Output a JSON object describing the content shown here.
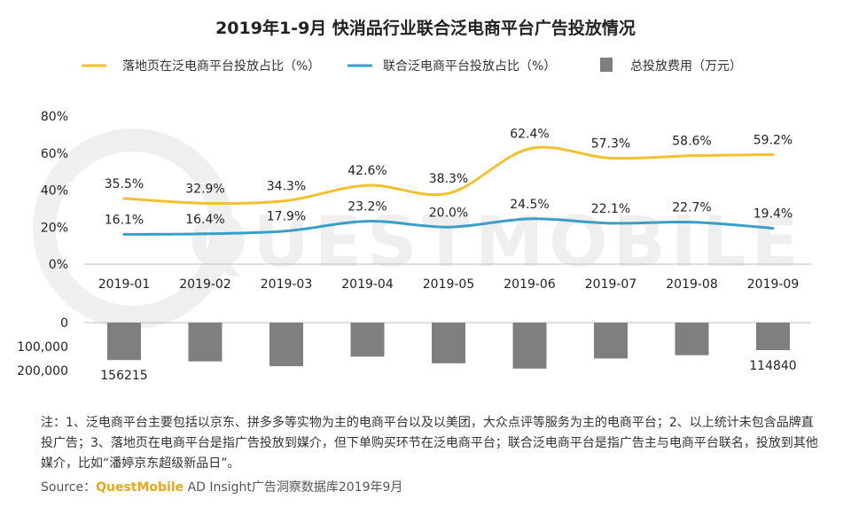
{
  "chart_data": {
    "type": "line",
    "title": "2019年1-9月 快消品行业联合泛电商平台广告投放情况",
    "categories": [
      "2019-01",
      "2019-02",
      "2019-03",
      "2019-04",
      "2019-05",
      "2019-06",
      "2019-07",
      "2019-08",
      "2019-09"
    ],
    "ylim": [
      0,
      80
    ],
    "yticks": [
      "80%",
      "60%",
      "40%",
      "20%",
      "0%"
    ],
    "series": [
      {
        "name": "落地页在泛电商平台投放占比（%）",
        "color": "#f2c12e",
        "values": [
          35.5,
          32.9,
          34.3,
          42.6,
          38.3,
          62.4,
          57.3,
          58.6,
          59.2
        ],
        "labels": [
          "35.5%",
          "32.9%",
          "34.3%",
          "42.6%",
          "38.3%",
          "62.4%",
          "57.3%",
          "58.6%",
          "59.2%"
        ]
      },
      {
        "name": "联合泛电商平台投放占比（%）",
        "color": "#3a9fc8",
        "values": [
          16.1,
          16.4,
          17.9,
          23.2,
          20.0,
          24.5,
          22.1,
          22.7,
          19.4
        ],
        "labels": [
          "16.1%",
          "16.4%",
          "17.9%",
          "23.2%",
          "20.0%",
          "24.5%",
          "22.1%",
          "22.7%",
          "19.4%"
        ]
      }
    ],
    "bars": {
      "name": "总投放费用（万元）",
      "color": "#7f7f7f",
      "type": "bar",
      "ylim": [
        0,
        200000
      ],
      "yticks": [
        "0",
        "100,000",
        "200,000"
      ],
      "values": [
        156215,
        162000,
        182000,
        142000,
        170000,
        192000,
        150000,
        136000,
        114840
      ],
      "labels": [
        "156215",
        "",
        "",
        "",
        "",
        "",
        "",
        "",
        "114840"
      ]
    },
    "watermark": "QUESTMOBILE"
  },
  "note": "注：1、泛电商平台主要包括以京东、拼多多等实物为主的电商平台以及以美团，大众点评等服务为主的电商平台；2、以上统计未包含品牌直投广告；3、落地页在电商平台是指广告投放到媒介，但下单购买环节在泛电商平台；联合泛电商平台是指广告主与电商平台联名，投放到其他媒介，比如“潘婷京东超级新品日”。",
  "source": {
    "prefix": "Source：",
    "brand": "QuestMobile",
    "rest": " AD Insight广告洞察数据库2019年9月"
  }
}
